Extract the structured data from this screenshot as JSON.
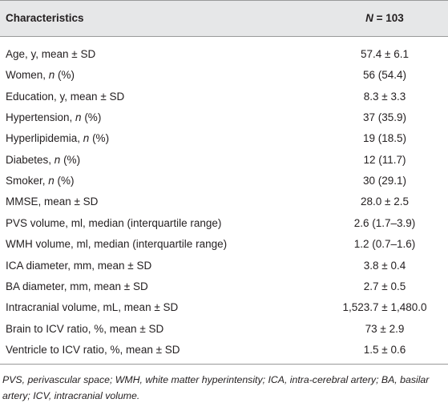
{
  "table": {
    "header": {
      "label": "Characteristics",
      "value": [
        {
          "text": "N",
          "italic": true
        },
        {
          "text": " = 103"
        }
      ]
    },
    "rows": [
      {
        "label": "Age, y, mean ± SD",
        "value": "57.4 ± 6.1"
      },
      {
        "label": [
          {
            "text": "Women, "
          },
          {
            "text": "n",
            "italic": true
          },
          {
            "text": " (%)"
          }
        ],
        "value": "56 (54.4)"
      },
      {
        "label": "Education, y, mean ± SD",
        "value": "8.3 ± 3.3"
      },
      {
        "label": [
          {
            "text": "Hypertension, "
          },
          {
            "text": "n",
            "italic": true
          },
          {
            "text": " (%)"
          }
        ],
        "value": "37 (35.9)"
      },
      {
        "label": [
          {
            "text": "Hyperlipidemia, "
          },
          {
            "text": "n",
            "italic": true
          },
          {
            "text": " (%)"
          }
        ],
        "value": "19 (18.5)"
      },
      {
        "label": [
          {
            "text": "Diabetes, "
          },
          {
            "text": "n",
            "italic": true
          },
          {
            "text": " (%)"
          }
        ],
        "value": "12 (11.7)"
      },
      {
        "label": [
          {
            "text": "Smoker, "
          },
          {
            "text": "n",
            "italic": true
          },
          {
            "text": " (%)"
          }
        ],
        "value": "30 (29.1)"
      },
      {
        "label": "MMSE, mean ± SD",
        "value": "28.0 ± 2.5"
      },
      {
        "label": "PVS volume, ml, median (interquartile range)",
        "value": "2.6 (1.7–3.9)"
      },
      {
        "label": "WMH volume, ml, median (interquartile range)",
        "value": "1.2 (0.7–1.6)"
      },
      {
        "label": "ICA diameter, mm, mean ± SD",
        "value": "3.8 ± 0.4"
      },
      {
        "label": "BA diameter, mm, mean ± SD",
        "value": "2.7 ± 0.5"
      },
      {
        "label": "Intracranial volume, mL, mean ± SD",
        "value": "1,523.7 ± 1,480.0"
      },
      {
        "label": "Brain to ICV ratio, %, mean ± SD",
        "value": "73 ± 2.9"
      },
      {
        "label": "Ventricle to ICV ratio, %, mean ± SD",
        "value": "1.5 ± 0.6"
      }
    ],
    "footnote": "PVS, perivascular space; WMH, white matter hyperintensity; ICA, intra-cerebral artery; BA, basilar artery; ICV, intracranial volume."
  }
}
